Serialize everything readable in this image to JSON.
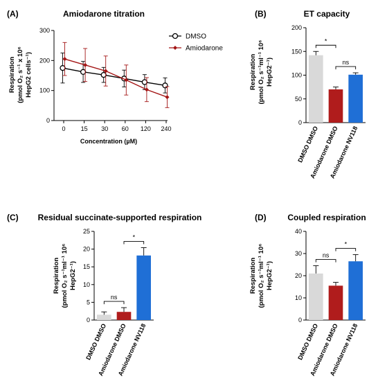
{
  "chart_data": [
    {
      "panel": "(A)",
      "type": "line",
      "title": "Amiodarone titration",
      "ylabel": "Respiration",
      "ylabel2": "(pmol O₂ s⁻¹ x 10⁶",
      "ylabel3": "HepG2 cells⁻¹)",
      "xlabel": "Concentration (µM)",
      "ylim": [
        0,
        300
      ],
      "yticks": [
        "0",
        "100",
        "200",
        "300"
      ],
      "categories": [
        "0",
        "15",
        "30",
        "60",
        "120",
        "240"
      ],
      "series": [
        {
          "name": "DMSO",
          "color": "#000000",
          "values": [
            175,
            162,
            152,
            140,
            128,
            117
          ],
          "err": [
            50,
            35,
            25,
            28,
            25,
            25
          ]
        },
        {
          "name": "Amiodarone",
          "color": "#a31515",
          "values": [
            205,
            185,
            165,
            135,
            103,
            78
          ],
          "err": [
            55,
            55,
            50,
            50,
            40,
            35
          ]
        }
      ]
    },
    {
      "panel": "(B)",
      "type": "bar",
      "title": "ET capacity",
      "ylabel": "Respiration",
      "ylabel2": "(pmol O₂ s⁻¹ml⁻¹ 10⁶",
      "ylabel3": "HepG2⁻¹)",
      "ylim": [
        0,
        200
      ],
      "yticks": [
        "0",
        "50",
        "100",
        "150",
        "200"
      ],
      "categories": [
        "DMSO DMSO",
        "Amiodarone  DMSO",
        "Amiodarone NV118"
      ],
      "values": [
        142,
        70,
        101
      ],
      "err": [
        8,
        5,
        4
      ],
      "colors": [
        "#d9d9d9",
        "#b01c1c",
        "#1f6fd6"
      ],
      "significance": [
        {
          "from": 0,
          "to": 1,
          "label": "*"
        },
        {
          "from": 1,
          "to": 2,
          "label": "ns"
        }
      ]
    },
    {
      "panel": "(C)",
      "type": "bar",
      "title": "Residual succinate-supported respiration",
      "ylabel": "Respiration",
      "ylabel2": "(pmol O₂ s⁻¹ml⁻¹ 10⁶",
      "ylabel3": "HepG2⁻¹)",
      "ylim": [
        0,
        25
      ],
      "yticks": [
        "0",
        "5",
        "10",
        "15",
        "20",
        "25"
      ],
      "categories": [
        "DMSO DMSO",
        "Amiodarone  DMSO",
        "Amiodarone NV118"
      ],
      "values": [
        1.5,
        2.3,
        18.2
      ],
      "err": [
        0.8,
        1.2,
        2.2
      ],
      "colors": [
        "#d9d9d9",
        "#b01c1c",
        "#1f6fd6"
      ],
      "significance": [
        {
          "from": 0,
          "to": 1,
          "label": "ns"
        },
        {
          "from": 1,
          "to": 2,
          "label": "*"
        }
      ]
    },
    {
      "panel": "(D)",
      "type": "bar",
      "title": "Coupled respiration",
      "ylabel": "Respiration",
      "ylabel2": "(pmol O₂ s⁻¹ml⁻¹ 10⁶",
      "ylabel3": "HepG2⁻¹)",
      "ylim": [
        0,
        40
      ],
      "yticks": [
        "0",
        "10",
        "20",
        "30",
        "40"
      ],
      "categories": [
        "DMSO DMSO",
        "Amiodarone  DMSO",
        "Amiodarone NV118"
      ],
      "values": [
        21,
        15.5,
        26.5
      ],
      "err": [
        3.5,
        1.5,
        3
      ],
      "colors": [
        "#d9d9d9",
        "#b01c1c",
        "#1f6fd6"
      ],
      "significance": [
        {
          "from": 0,
          "to": 1,
          "label": "ns"
        },
        {
          "from": 1,
          "to": 2,
          "label": "*"
        }
      ]
    }
  ]
}
